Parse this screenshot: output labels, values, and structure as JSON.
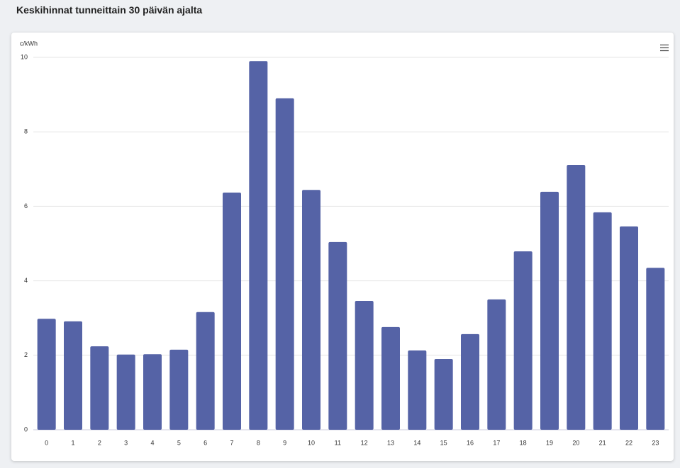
{
  "header": {
    "title": "Keskihinnat tunneittain 30 päivän ajalta"
  },
  "chart_data": {
    "type": "bar",
    "y_label": "c/kWh",
    "categories": [
      "0",
      "1",
      "2",
      "3",
      "4",
      "5",
      "6",
      "7",
      "8",
      "9",
      "10",
      "11",
      "12",
      "13",
      "14",
      "15",
      "16",
      "17",
      "18",
      "19",
      "20",
      "21",
      "22",
      "23"
    ],
    "values": [
      2.98,
      2.91,
      2.24,
      2.02,
      2.03,
      2.15,
      3.16,
      6.37,
      9.9,
      8.9,
      6.44,
      5.04,
      3.46,
      2.76,
      2.13,
      1.9,
      2.57,
      3.5,
      4.79,
      6.39,
      7.11,
      5.84,
      5.46,
      4.35
    ],
    "color": "#5563a6",
    "ylim": [
      0,
      10
    ],
    "yticks": [
      0,
      2,
      4,
      6,
      8,
      10
    ],
    "grid": true
  }
}
